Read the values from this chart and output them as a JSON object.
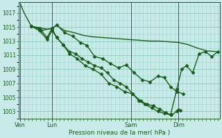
{
  "bg_color": "#c8eae8",
  "grid_color": "#88ccb8",
  "line_color": "#1a5c1a",
  "spine_color": "#1a5c1a",
  "title": "Pression niveau de la mer( hPa )",
  "ylim": [
    1002.0,
    1018.5
  ],
  "yticks": [
    1003,
    1005,
    1007,
    1009,
    1011,
    1013,
    1015,
    1017
  ],
  "xtick_labels": [
    "Ven",
    "Lun",
    "Sam",
    "Dim"
  ],
  "xtick_positions": [
    0.0,
    1.0,
    3.5,
    5.0
  ],
  "xlim": [
    -0.05,
    6.3
  ],
  "series": [
    {
      "x": [
        0.0,
        0.12,
        0.35,
        0.6,
        0.85,
        1.0,
        1.15,
        1.4,
        1.7,
        2.0,
        2.3,
        2.6,
        2.9,
        3.2,
        3.5,
        3.8,
        4.1,
        4.4,
        4.7,
        5.0,
        5.3,
        5.6,
        5.9,
        6.2
      ],
      "y": [
        1018.3,
        1017.0,
        1015.1,
        1014.9,
        1014.7,
        1014.8,
        1015.2,
        1014.5,
        1014.2,
        1013.8,
        1013.6,
        1013.5,
        1013.4,
        1013.3,
        1013.2,
        1013.1,
        1013.0,
        1013.0,
        1012.9,
        1012.8,
        1012.5,
        1012.0,
        1011.6,
        1011.5
      ],
      "marker": null,
      "markersize": 0,
      "linewidth": 1.0,
      "linestyle": "-"
    },
    {
      "x": [
        0.35,
        0.6,
        0.85,
        1.0,
        1.15,
        1.4,
        1.65,
        1.9,
        2.1,
        2.35,
        2.6,
        2.85,
        3.1,
        3.35,
        3.6,
        3.85,
        4.1,
        4.35,
        4.55,
        4.75,
        4.95,
        5.15
      ],
      "y": [
        1015.1,
        1014.8,
        1013.5,
        1014.8,
        1015.3,
        1014.2,
        1013.7,
        1012.8,
        1012.4,
        1010.8,
        1010.5,
        1009.8,
        1009.2,
        1009.6,
        1008.5,
        1007.5,
        1007.2,
        1008.0,
        1007.8,
        1006.5,
        1005.8,
        1005.5
      ],
      "marker": "D",
      "markersize": 2.5,
      "linewidth": 1.0,
      "linestyle": "-"
    },
    {
      "x": [
        0.35,
        0.6,
        0.85,
        1.0,
        1.15,
        1.35,
        1.55,
        1.8,
        2.05,
        2.3,
        2.55,
        2.8,
        3.05,
        3.3,
        3.55,
        3.8,
        4.0,
        4.2,
        4.4,
        4.6,
        4.78,
        4.95,
        5.0,
        5.05
      ],
      "y": [
        1015.1,
        1014.5,
        1013.2,
        1014.5,
        1013.5,
        1012.5,
        1011.2,
        1010.5,
        1009.5,
        1009.0,
        1008.3,
        1007.0,
        1006.5,
        1005.8,
        1005.5,
        1004.5,
        1004.0,
        1003.8,
        1003.3,
        1002.8,
        1002.5,
        1003.0,
        1003.2,
        1003.1
      ],
      "marker": "D",
      "markersize": 2.5,
      "linewidth": 1.0,
      "linestyle": "-"
    },
    {
      "x": [
        0.35,
        0.65,
        1.0,
        1.15,
        1.35,
        1.55,
        1.75,
        1.95,
        2.15,
        2.35,
        2.55,
        2.75,
        2.95,
        3.15,
        3.35,
        3.55,
        3.75,
        3.95,
        4.15,
        4.35,
        4.55,
        4.75,
        4.95,
        5.1,
        5.25,
        5.45,
        5.65,
        5.85,
        6.05,
        6.25
      ],
      "y": [
        1015.1,
        1014.5,
        1014.8,
        1013.5,
        1012.5,
        1011.5,
        1011.2,
        1010.5,
        1010.0,
        1009.5,
        1009.2,
        1008.5,
        1007.5,
        1007.0,
        1006.5,
        1005.5,
        1004.5,
        1004.0,
        1003.5,
        1003.0,
        1002.7,
        1002.5,
        1006.2,
        1009.0,
        1009.5,
        1008.5,
        1011.2,
        1011.5,
        1010.8,
        1011.5
      ],
      "marker": "D",
      "markersize": 2.5,
      "linewidth": 1.0,
      "linestyle": "-"
    }
  ]
}
